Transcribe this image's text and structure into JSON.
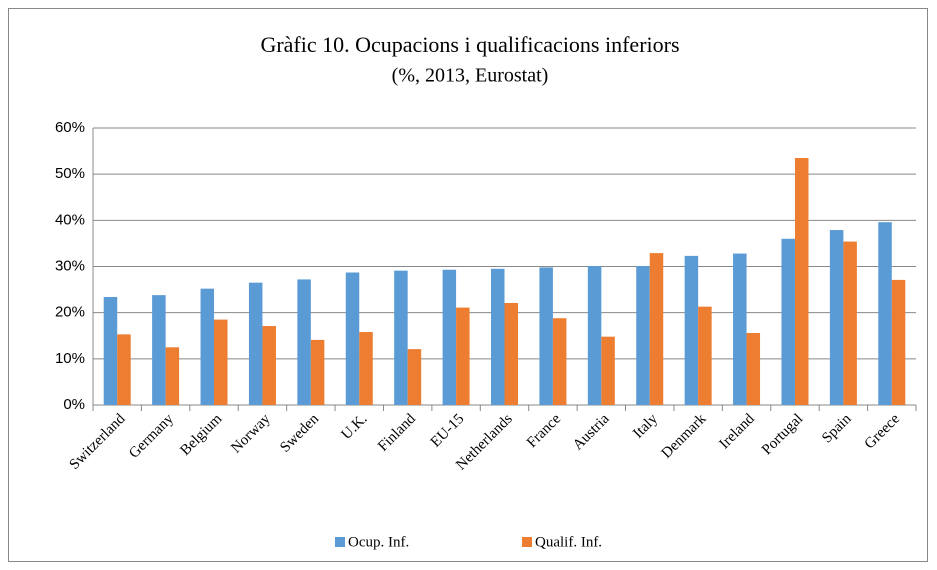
{
  "chart_data": {
    "type": "bar",
    "title": "Gràfic 10. Ocupacions i qualificacions inferiors",
    "subtitle": "(%, 2013, Eurostat)",
    "categories": [
      "Switzerland",
      "Germany",
      "Belgium",
      "Norway",
      "Sweden",
      "U.K.",
      "Finland",
      "EU-15",
      "Netherlands",
      "France",
      "Austria",
      "Italy",
      "Denmark",
      "Ireland",
      "Portugal",
      "Spain",
      "Greece"
    ],
    "series": [
      {
        "name": "Ocup. Inf.",
        "color": "#5b9bd5",
        "values": [
          23.4,
          23.8,
          25.2,
          26.5,
          27.2,
          28.7,
          29.1,
          29.3,
          29.5,
          29.8,
          30.1,
          30.1,
          32.3,
          32.8,
          36.0,
          37.9,
          39.6
        ]
      },
      {
        "name": "Qualif. Inf.",
        "color": "#ed7d31",
        "values": [
          15.3,
          12.5,
          18.5,
          17.1,
          14.1,
          15.8,
          12.1,
          21.1,
          22.1,
          18.8,
          14.8,
          32.9,
          21.3,
          15.6,
          53.5,
          35.4,
          27.1
        ]
      }
    ],
    "ylim": [
      0,
      60
    ],
    "yticks": [
      {
        "value": 0,
        "label": "0%"
      },
      {
        "value": 10,
        "label": "10%"
      },
      {
        "value": 20,
        "label": "20%"
      },
      {
        "value": 30,
        "label": "30%"
      },
      {
        "value": 40,
        "label": "40%"
      },
      {
        "value": 50,
        "label": "50%"
      },
      {
        "value": 60,
        "label": "60%"
      }
    ],
    "grid": true,
    "legend": "bottom"
  }
}
